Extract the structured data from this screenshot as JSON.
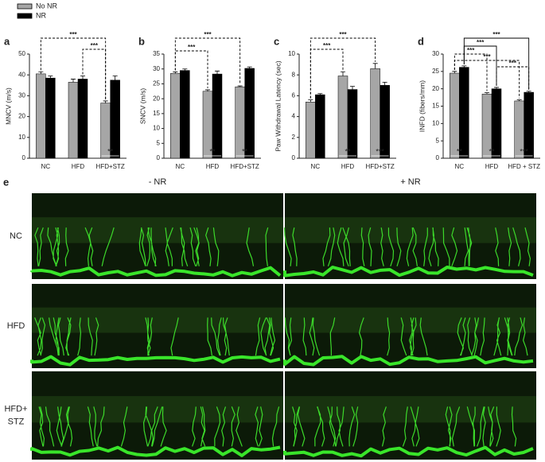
{
  "chart_data": [
    {
      "type": "bar",
      "label": "a",
      "y_label": "MNCV (m/s)",
      "categories": [
        "NC",
        "HFD",
        "HFD+STZ"
      ],
      "series": [
        {
          "name": "No NR",
          "color": "#a6a6a6",
          "values": [
            40.5,
            36.5,
            26.5
          ],
          "errors": [
            1,
            1.5,
            1
          ]
        },
        {
          "name": "NR",
          "color": "#000000",
          "values": [
            38.5,
            38,
            37.5
          ],
          "errors": [
            1,
            1.5,
            2
          ]
        }
      ],
      "ylim": [
        0,
        50
      ],
      "yticks": [
        0,
        10,
        20,
        30,
        40,
        50
      ],
      "brackets": [
        "***",
        "***"
      ],
      "inner_labels": [
        null,
        null,
        "**"
      ]
    },
    {
      "type": "bar",
      "label": "b",
      "y_label": "SNCV (m/s)",
      "categories": [
        "NC",
        "HFD",
        "HFD+STZ"
      ],
      "series": [
        {
          "name": "No NR",
          "color": "#a6a6a6",
          "values": [
            28.5,
            22.5,
            24
          ],
          "errors": [
            0.5,
            0.5,
            0.3
          ]
        },
        {
          "name": "NR",
          "color": "#000000",
          "values": [
            29.5,
            28.3,
            30.2
          ],
          "errors": [
            0.5,
            1,
            0.5
          ]
        }
      ],
      "ylim": [
        0,
        35
      ],
      "yticks": [
        0,
        5,
        10,
        15,
        20,
        25,
        30,
        35
      ],
      "brackets": [
        "***",
        "***"
      ],
      "inner_labels": [
        null,
        "**",
        "**"
      ]
    },
    {
      "type": "bar",
      "label": "c",
      "y_label": "Paw Withdrawal Latency (sec)",
      "categories": [
        "NC",
        "HFD",
        "HFD+STZ"
      ],
      "series": [
        {
          "name": "No NR",
          "color": "#a6a6a6",
          "values": [
            5.4,
            7.9,
            8.6
          ],
          "errors": [
            0.2,
            0.4,
            0.5
          ]
        },
        {
          "name": "NR",
          "color": "#000000",
          "values": [
            6.1,
            6.6,
            7.0
          ],
          "errors": [
            0.1,
            0.3,
            0.3
          ]
        }
      ],
      "ylim": [
        0,
        10
      ],
      "yticks": [
        0,
        2,
        4,
        6,
        8,
        10
      ],
      "brackets": [
        "***",
        "***"
      ],
      "inner_labels": [
        null,
        "**",
        "***"
      ]
    },
    {
      "type": "bar",
      "label": "d",
      "y_label": "INFD (fibers/mm)",
      "categories": [
        "NC",
        "HFD",
        "HFD + STZ"
      ],
      "series": [
        {
          "name": "No NR",
          "color": "#a6a6a6",
          "values": [
            24.5,
            18.5,
            16.5
          ],
          "errors": [
            0.5,
            0.4,
            0.3
          ]
        },
        {
          "name": "NR",
          "color": "#000000",
          "values": [
            26.2,
            20,
            19
          ],
          "errors": [
            0.4,
            0.4,
            0.3
          ]
        }
      ],
      "ylim": [
        0,
        30
      ],
      "yticks": [
        0,
        5,
        10,
        15,
        20,
        25,
        30
      ],
      "brackets": [
        "***",
        "***",
        "***",
        "***",
        "***"
      ],
      "inner_labels": [
        "**",
        "**",
        "***"
      ]
    }
  ],
  "panel_e": {
    "label": "e",
    "columns": [
      "- NR",
      "+ NR"
    ],
    "rows": [
      "NC",
      "HFD",
      "HFD+ STZ"
    ]
  }
}
